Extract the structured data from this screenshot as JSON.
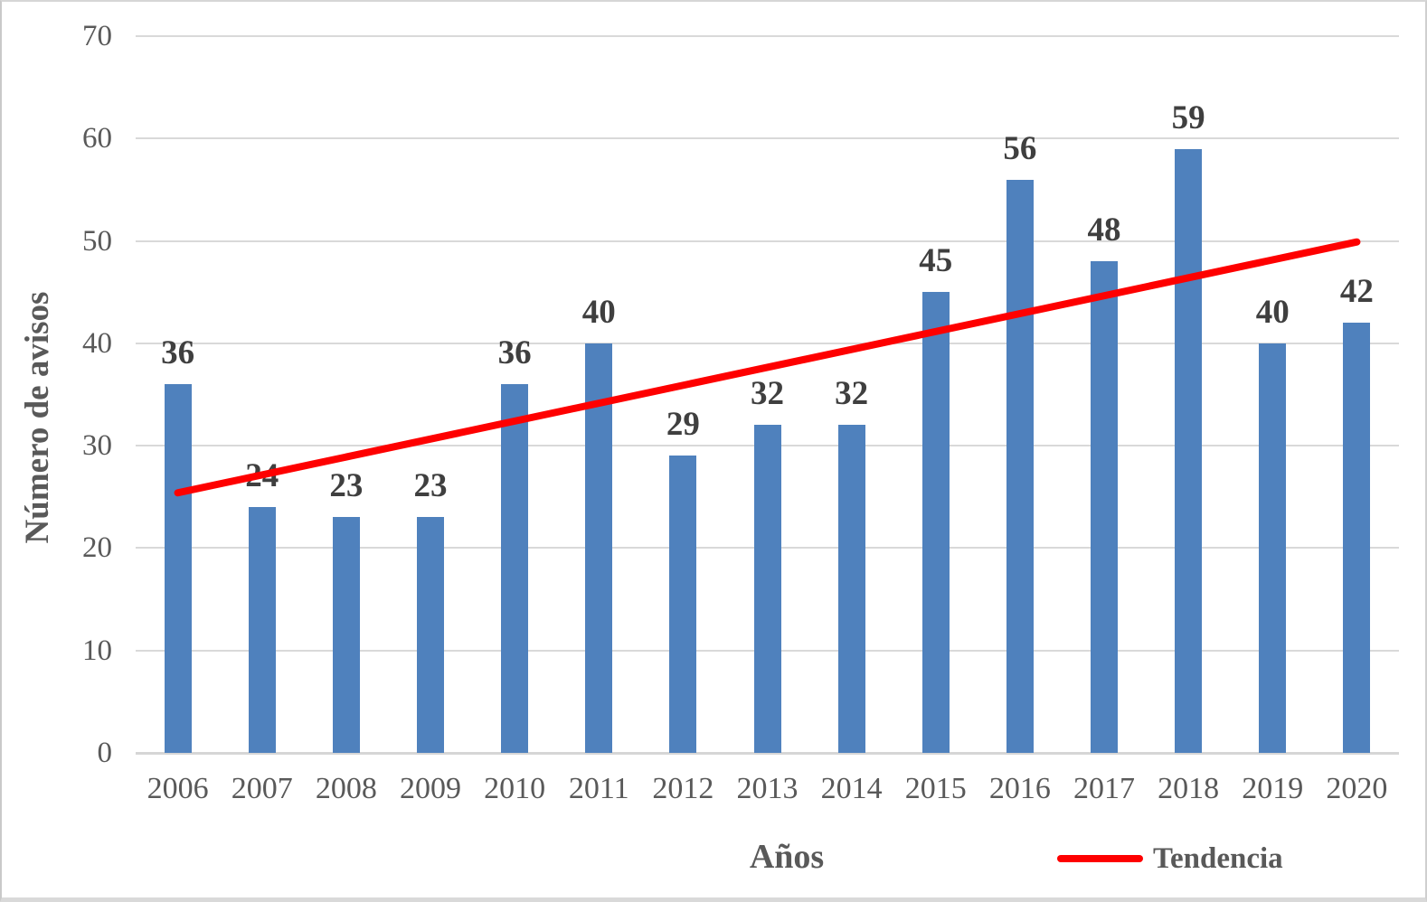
{
  "chart_data": {
    "type": "bar",
    "title": "",
    "categories": [
      "2006",
      "2007",
      "2008",
      "2009",
      "2010",
      "2011",
      "2012",
      "2013",
      "2014",
      "2015",
      "2016",
      "2017",
      "2018",
      "2019",
      "2020"
    ],
    "values": [
      36,
      24,
      23,
      23,
      36,
      40,
      29,
      32,
      32,
      45,
      56,
      48,
      59,
      40,
      42
    ],
    "data_labels_shown": true,
    "xlabel": "Años",
    "ylabel": "Número de avisos",
    "ylim": [
      0,
      70
    ],
    "yticks": [
      0,
      10,
      20,
      30,
      40,
      50,
      60,
      70
    ],
    "grid": true,
    "legend_position": "bottom-right",
    "trendline": {
      "name": "Tendencia",
      "start_category": "2006",
      "end_category": "2020",
      "start_value": 25.4,
      "end_value": 49.9
    }
  },
  "axis": {
    "y_title": "Número de avisos",
    "x_title": "Años"
  },
  "legend": {
    "label": "Tendencia"
  },
  "colors": {
    "bar": "#4f81bd",
    "trend": "#fe0000",
    "data_label": "#3f3f3f",
    "axis_label": "#595959",
    "gridline": "#d9d9d9",
    "axis_line": "#d6d6d6"
  }
}
